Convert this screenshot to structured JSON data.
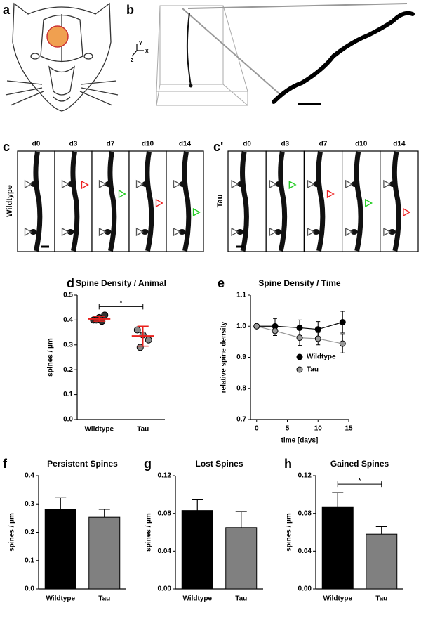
{
  "panel_labels": [
    "a",
    "b",
    "c",
    "c'",
    "d",
    "e",
    "f",
    "g",
    "h"
  ],
  "b_axes": [
    "Y",
    "X",
    "Z"
  ],
  "c_panel": {
    "row_label": "Wildtype",
    "days": [
      "d0",
      "d3",
      "d7",
      "d10",
      "d14"
    ]
  },
  "c_prime_panel": {
    "row_label": "Tau",
    "days": [
      "d0",
      "d3",
      "d7",
      "d10",
      "d14"
    ]
  },
  "chart_data": [
    {
      "type": "dot",
      "title": "Spine Density / Animal",
      "ylabel": "spines / µm",
      "categories": [
        "Wildtype",
        "Tau"
      ],
      "points": [
        [
          0.4,
          0.41,
          0.42,
          0.4,
          0.395
        ],
        [
          0.36,
          0.34,
          0.32,
          0.29
        ]
      ],
      "point_colors": [
        "#333333",
        "#888888"
      ],
      "means": [
        0.405,
        0.335
      ],
      "errors": [
        0.01,
        0.04
      ],
      "mean_color": "#e8201c",
      "ylim": [
        0,
        0.5
      ],
      "yticks": [
        {
          "value": 0,
          "label": "0.0"
        },
        0.1,
        0.2,
        0.3,
        0.4,
        0.5
      ],
      "annotation": "*"
    },
    {
      "type": "line",
      "title": "Spine Density / Time",
      "xlabel": "time [days]",
      "ylabel": "relative spine density",
      "x": [
        0,
        3,
        7,
        10,
        14
      ],
      "series": [
        {
          "name": "Wildtype",
          "color": "#000000",
          "values": [
            1.0,
            1.0,
            0.995,
            0.99,
            1.013
          ],
          "errors": [
            0,
            0.025,
            0.025,
            0.025,
            0.035
          ]
        },
        {
          "name": "Tau",
          "color": "#999999",
          "values": [
            1.0,
            0.985,
            0.963,
            0.96,
            0.944
          ],
          "errors": [
            0,
            0.015,
            0.025,
            0.02,
            0.03
          ]
        }
      ],
      "xlim": [
        -1,
        15
      ],
      "xticks": [
        0,
        5,
        10,
        15
      ],
      "ylim": [
        0.7,
        1.1
      ],
      "yticks": [
        0.7,
        0.8,
        0.9,
        {
          "value": 1.0,
          "label": "1.0"
        },
        1.1
      ],
      "legend": "right"
    },
    {
      "type": "bar",
      "title": "Persistent Spines",
      "ylabel": "spines / µm",
      "categories": [
        "Wildtype",
        "Tau"
      ],
      "values": [
        0.28,
        0.253
      ],
      "errors": [
        0.042,
        0.028
      ],
      "colors": [
        "#000000",
        "#808080"
      ],
      "ylim": [
        0,
        0.4
      ],
      "yticks": [
        {
          "value": 0,
          "label": "0.0"
        },
        0.1,
        0.2,
        0.3,
        0.4
      ]
    },
    {
      "type": "bar",
      "title": "Lost Spines",
      "ylabel": "spines / µm",
      "categories": [
        "Wildtype",
        "Tau"
      ],
      "values": [
        0.083,
        0.065
      ],
      "errors": [
        0.012,
        0.017
      ],
      "colors": [
        "#000000",
        "#808080"
      ],
      "ylim": [
        0,
        0.12
      ],
      "yticks": [
        {
          "value": 0,
          "label": "0.00"
        },
        0.04,
        0.08,
        0.12
      ]
    },
    {
      "type": "bar",
      "title": "Gained Spines",
      "ylabel": "spines / µm",
      "categories": [
        "Wildtype",
        "Tau"
      ],
      "values": [
        0.087,
        0.058
      ],
      "errors": [
        0.015,
        0.008
      ],
      "colors": [
        "#000000",
        "#808080"
      ],
      "ylim": [
        0,
        0.12
      ],
      "yticks": [
        {
          "value": 0,
          "label": "0.00"
        },
        0.04,
        0.08,
        0.12
      ],
      "annotation": "*"
    }
  ]
}
